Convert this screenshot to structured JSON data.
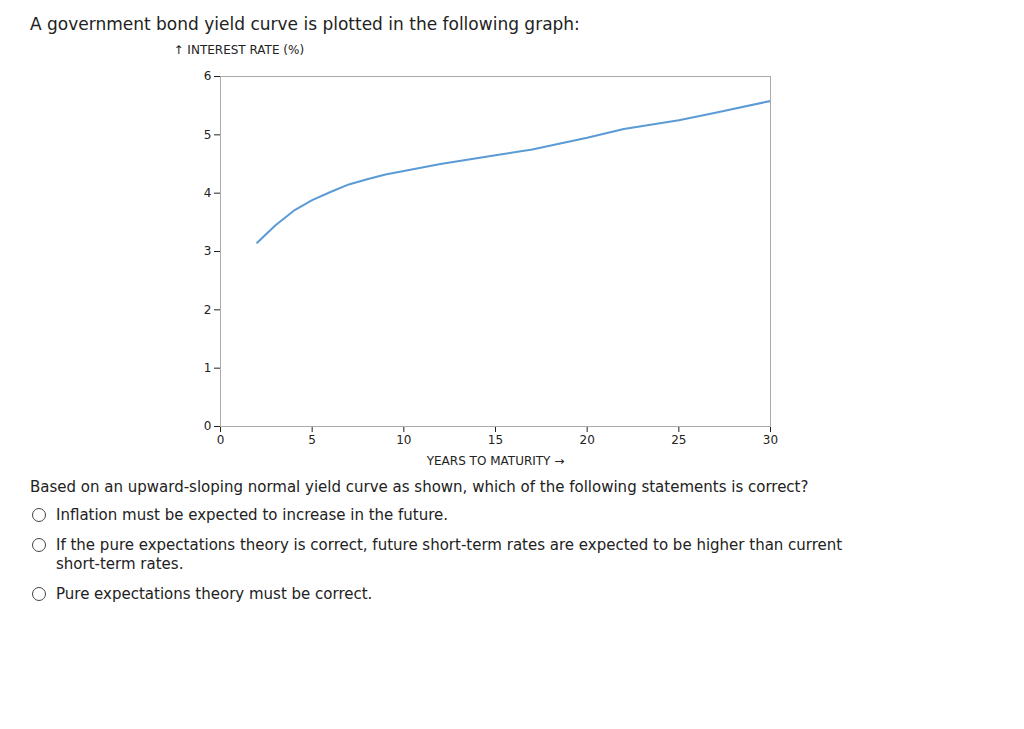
{
  "chart_data": {
    "type": "line",
    "title": "A government bond yield curve is plotted in the following graph:",
    "xlabel": "YEARS TO MATURITY",
    "ylabel": "INTEREST RATE (%)",
    "x": [
      2,
      3,
      4,
      5,
      6,
      7,
      8,
      9,
      10,
      12,
      15,
      17,
      20,
      22,
      25,
      27,
      30
    ],
    "values": [
      3.15,
      3.45,
      3.7,
      3.88,
      4.02,
      4.15,
      4.24,
      4.32,
      4.38,
      4.5,
      4.65,
      4.75,
      4.95,
      5.1,
      5.25,
      5.38,
      5.58
    ],
    "color": "#5b9bd5",
    "xlim": [
      0,
      30
    ],
    "xticks": [
      0,
      5,
      10,
      15,
      20,
      25,
      30
    ],
    "ylim": [
      0,
      6
    ],
    "yticks": [
      0,
      1,
      2,
      3,
      4,
      5,
      6
    ],
    "grid": false,
    "annotations": [
      "Based on an upward-sloping normal yield curve as shown, which of the following statements is correct?",
      "Inflation must be expected to increase in the future.",
      "If the pure expectations theory is correct, future short-term rates are expected to be higher than current\nshort-term rates.",
      "Pure expectations theory must be correct."
    ]
  }
}
